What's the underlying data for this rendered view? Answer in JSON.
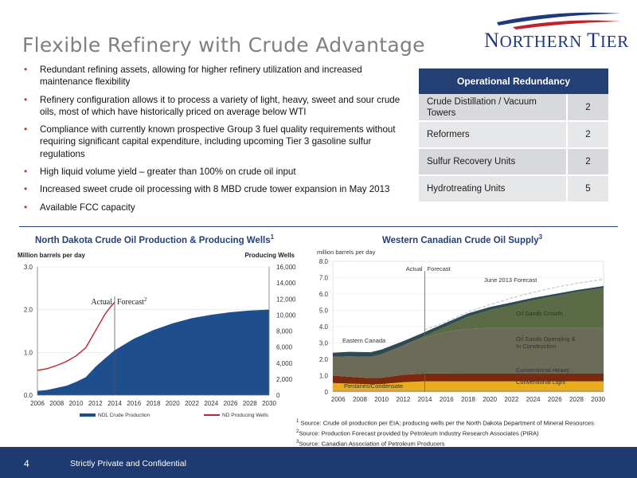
{
  "page": {
    "title": "Flexible Refinery with Crude Advantage",
    "logo_text": "NORTHERN TIER",
    "page_number": "4",
    "confidentiality": "Strictly Private and Confidential"
  },
  "bullets": [
    "Redundant refining assets, allowing for higher refinery utilization and increased maintenance flexibility",
    "Refinery configuration allows it to process a variety of light, heavy, sweet and sour crude oils, most of which have historically priced on average below WTI",
    "Compliance with currently known prospective Group 3 fuel quality requirements without requiring significant capital expenditure, including upcoming Tier 3 gasoline sulfur regulations",
    "High liquid volume yield – greater than 100% on crude oil input",
    "Increased sweet crude oil processing with 8 MBD crude tower expansion in May 2013",
    "Available FCC capacity"
  ],
  "ops_table": {
    "header": "Operational Redundancy",
    "rows": [
      {
        "name": "Crude Distillation / Vacuum Towers",
        "value": "2"
      },
      {
        "name": "Reformers",
        "value": "2"
      },
      {
        "name": "Sulfur Recovery Units",
        "value": "2"
      },
      {
        "name": "Hydrotreating Units",
        "value": "5"
      }
    ]
  },
  "chart_titles": {
    "nd": "North Dakota Crude Oil Production & Producing Wells",
    "nd_sup": "1",
    "wc": "Western Canadian Crude Oil Supply",
    "wc_sup": "3"
  },
  "sources": [
    {
      "sup": "1",
      "text": " Source: Crude oil production per EIA; producing wells per the North Dakota Department of Mineral Resources"
    },
    {
      "sup": "2",
      "text": "Source:  Production Forecast provided by Petroleum Industry Research Associates (PIRA)"
    },
    {
      "sup": "3",
      "text": "Source:  Canadian Association of Petroleum Producers"
    }
  ],
  "chart_data": [
    {
      "type": "area",
      "ylabel_left": "Million barrels per day",
      "ylabel_right": "Producing Wells",
      "ylim_left": [
        0,
        3
      ],
      "ylim_right": [
        0,
        16000
      ],
      "y_ticks_left": [
        "0.0",
        "1.0",
        "2.0",
        "3.0"
      ],
      "y_ticks_right": [
        "0",
        "2,000",
        "4,000",
        "6,000",
        "8,000",
        "10,000",
        "12,000",
        "14,000",
        "16,000"
      ],
      "x_ticks": [
        "2006",
        "2008",
        "2010",
        "2012",
        "2014",
        "2016",
        "2018",
        "2020",
        "2022",
        "2024",
        "2026",
        "2028",
        "2030"
      ],
      "xlim": [
        2006,
        2030
      ],
      "annotations": {
        "actual": "Actual",
        "forecast": "Forecast",
        "forecast_sup": "2",
        "split_year": 2014
      },
      "series": [
        {
          "name": "NDL Crude Production",
          "axis": "left",
          "color": "#1f4e8c",
          "x": [
            2006,
            2007,
            2008,
            2009,
            2010,
            2011,
            2012,
            2013,
            2014,
            2016,
            2018,
            2020,
            2022,
            2024,
            2026,
            2028,
            2030
          ],
          "values": [
            0.1,
            0.12,
            0.17,
            0.22,
            0.31,
            0.42,
            0.66,
            0.86,
            1.05,
            1.32,
            1.52,
            1.68,
            1.8,
            1.88,
            1.94,
            1.98,
            2.0
          ]
        },
        {
          "name": "ND Producing Wells",
          "axis": "right",
          "color": "#c0232b",
          "x": [
            2006,
            2007,
            2008,
            2009,
            2010,
            2011,
            2012,
            2013,
            2013.5,
            2014
          ],
          "values": [
            3100,
            3300,
            3700,
            4200,
            4900,
            5900,
            8000,
            10100,
            10900,
            11600
          ]
        }
      ]
    },
    {
      "type": "area",
      "ylabel": "million barrels per day",
      "ylim": [
        0,
        8
      ],
      "y_ticks": [
        "0",
        "1.0",
        "2.0",
        "3.0",
        "4.0",
        "5.0",
        "6.0",
        "7.0",
        "8.0"
      ],
      "x_ticks": [
        "2006",
        "2008",
        "2010",
        "2012",
        "2014",
        "2016",
        "2018",
        "2020",
        "2022",
        "2024",
        "2026",
        "2028",
        "2030"
      ],
      "xlim": [
        2005.5,
        2030.5
      ],
      "annotations": {
        "actual": "Actual",
        "forecast": "Forecast",
        "split_year": 2014,
        "forecast_line": "June 2013 Forecast"
      },
      "x": [
        2005.5,
        2007,
        2009,
        2010,
        2012,
        2014,
        2016,
        2018,
        2020,
        2022,
        2024,
        2026,
        2028,
        2030.5
      ],
      "series": [
        {
          "name": "Pentanes/Condensate",
          "color": "#d2a24a",
          "values": [
            0.15,
            0.15,
            0.15,
            0.15,
            0.15,
            0.15,
            0.15,
            0.15,
            0.15,
            0.15,
            0.15,
            0.15,
            0.15,
            0.15
          ]
        },
        {
          "name": "Conventional Light",
          "color": "#e9ad1c",
          "values": [
            0.4,
            0.36,
            0.32,
            0.34,
            0.45,
            0.5,
            0.5,
            0.5,
            0.5,
            0.5,
            0.5,
            0.5,
            0.5,
            0.5
          ]
        },
        {
          "name": "Conventional Heavy",
          "color": "#7b2a10",
          "values": [
            0.45,
            0.42,
            0.38,
            0.38,
            0.45,
            0.48,
            0.48,
            0.47,
            0.47,
            0.47,
            0.47,
            0.47,
            0.47,
            0.47
          ]
        },
        {
          "name": "Oil Sands Operating & In Construction",
          "color": "#6b6b58",
          "values": [
            1.15,
            1.25,
            1.3,
            1.45,
            1.8,
            2.2,
            2.55,
            2.75,
            2.8,
            2.8,
            2.8,
            2.8,
            2.8,
            2.8
          ]
        },
        {
          "name": "Oil Sands Growth",
          "color": "#5a6b45",
          "values": [
            0,
            0,
            0,
            0,
            0,
            0.1,
            0.35,
            0.75,
            1.1,
            1.4,
            1.7,
            1.95,
            2.2,
            2.45
          ]
        },
        {
          "name": "Eastern Canada",
          "color": "#2f4a52",
          "values": [
            0.25,
            0.28,
            0.28,
            0.28,
            0.26,
            0.24,
            0.22,
            0.2,
            0.18,
            0.16,
            0.14,
            0.13,
            0.12,
            0.12
          ]
        }
      ],
      "forecast_overlay": {
        "name": "June 2013 Forecast",
        "x": [
          2014,
          2016,
          2018,
          2020,
          2022,
          2024,
          2026,
          2028,
          2030.5
        ],
        "values": [
          3.8,
          4.3,
          4.9,
          5.35,
          5.75,
          6.1,
          6.4,
          6.65,
          6.9
        ]
      }
    }
  ]
}
